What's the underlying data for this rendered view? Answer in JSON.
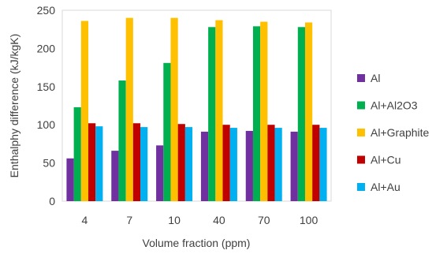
{
  "chart_data": {
    "type": "bar",
    "categories": [
      "4",
      "7",
      "10",
      "40",
      "70",
      "100"
    ],
    "series": [
      {
        "name": "Al",
        "color": "#7030A0",
        "values": [
          56,
          66,
          73,
          91,
          92,
          91
        ]
      },
      {
        "name": "Al+Al2O3",
        "color": "#00B050",
        "values": [
          123,
          158,
          181,
          228,
          229,
          228
        ]
      },
      {
        "name": "Al+Graphite",
        "color": "#FFC000",
        "values": [
          236,
          240,
          240,
          237,
          235,
          234
        ]
      },
      {
        "name": "Al+Cu",
        "color": "#C00000",
        "values": [
          102,
          102,
          101,
          100,
          100,
          100
        ]
      },
      {
        "name": "Al+Au",
        "color": "#00B0F0",
        "values": [
          98,
          97,
          97,
          96,
          96,
          96
        ]
      }
    ],
    "xlabel": "Volume fraction (ppm)",
    "ylabel": "Enthalphy difference (kJ/kgK)",
    "ylim": [
      0,
      250
    ],
    "yticks": [
      0,
      50,
      100,
      150,
      200,
      250
    ],
    "grid": false,
    "legend": "right"
  }
}
